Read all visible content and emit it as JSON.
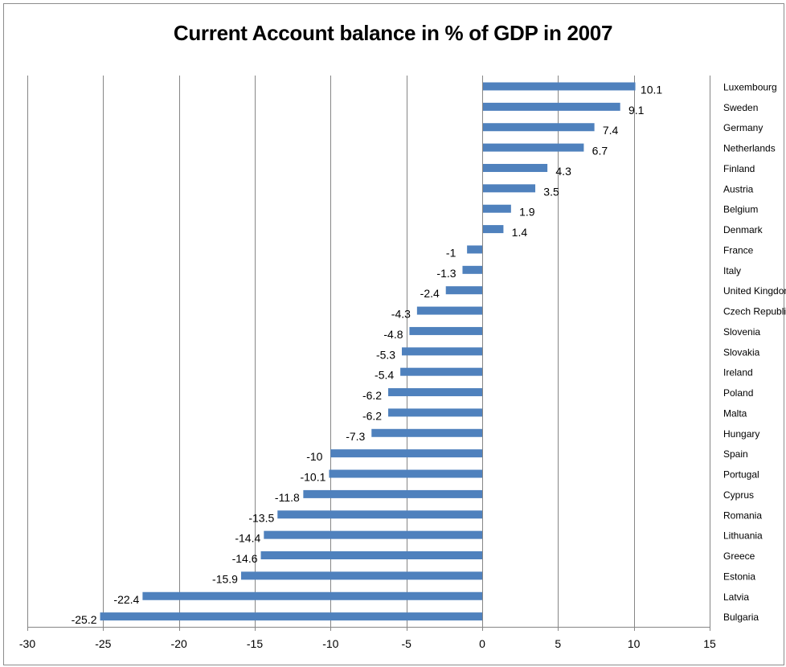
{
  "chart_data": {
    "type": "bar",
    "orientation": "horizontal",
    "title": "Current Account balance in % of GDP in 2007",
    "categories": [
      "Luxembourg",
      "Sweden",
      "Germany",
      "Netherlands",
      "Finland",
      "Austria",
      "Belgium",
      "Denmark",
      "France",
      "Italy",
      "United Kingdom",
      "Czech Republic",
      "Slovenia",
      "Slovakia",
      "Ireland",
      "Poland",
      "Malta",
      "Hungary",
      "Spain",
      "Portugal",
      "Cyprus",
      "Romania",
      "Lithuania",
      "Greece",
      "Estonia",
      "Latvia",
      "Bulgaria"
    ],
    "values": [
      10.1,
      9.1,
      7.4,
      6.7,
      4.3,
      3.5,
      1.9,
      1.4,
      -1,
      -1.3,
      -2.4,
      -4.3,
      -4.8,
      -5.3,
      -5.4,
      -6.2,
      -6.2,
      -7.3,
      -10,
      -10.1,
      -11.8,
      -13.5,
      -14.4,
      -14.6,
      -15.9,
      -22.4,
      -25.2
    ],
    "xlim": [
      -30,
      15
    ],
    "xticks": [
      -30,
      -25,
      -20,
      -15,
      -10,
      -5,
      0,
      5,
      10,
      15
    ],
    "grid": "vertical",
    "legend": "none",
    "bar_color": "#4f81bd",
    "grid_color": "#868686"
  }
}
